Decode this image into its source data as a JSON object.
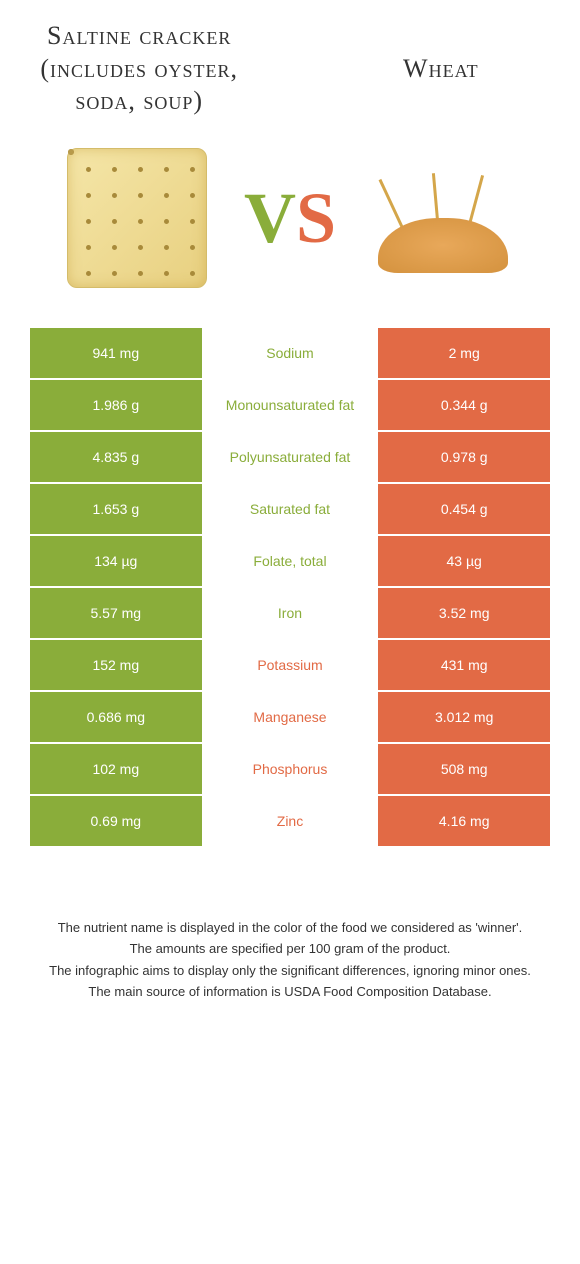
{
  "colors": {
    "left": "#8aad3a",
    "right": "#e26a45",
    "text": "#333333",
    "white": "#ffffff"
  },
  "header": {
    "left_title": "Saltine cracker (includes oyster, soda, soup)",
    "right_title": "Wheat"
  },
  "vs": {
    "v": "V",
    "s": "S"
  },
  "rows": [
    {
      "left": "941 mg",
      "label": "Sodium",
      "right": "2 mg",
      "winner": "left"
    },
    {
      "left": "1.986 g",
      "label": "Monounsaturated fat",
      "right": "0.344 g",
      "winner": "left"
    },
    {
      "left": "4.835 g",
      "label": "Polyunsaturated fat",
      "right": "0.978 g",
      "winner": "left"
    },
    {
      "left": "1.653 g",
      "label": "Saturated fat",
      "right": "0.454 g",
      "winner": "left"
    },
    {
      "left": "134 µg",
      "label": "Folate, total",
      "right": "43 µg",
      "winner": "left"
    },
    {
      "left": "5.57 mg",
      "label": "Iron",
      "right": "3.52 mg",
      "winner": "left"
    },
    {
      "left": "152 mg",
      "label": "Potassium",
      "right": "431 mg",
      "winner": "right"
    },
    {
      "left": "0.686 mg",
      "label": "Manganese",
      "right": "3.012 mg",
      "winner": "right"
    },
    {
      "left": "102 mg",
      "label": "Phosphorus",
      "right": "508 mg",
      "winner": "right"
    },
    {
      "left": "0.69 mg",
      "label": "Zinc",
      "right": "4.16 mg",
      "winner": "right"
    }
  ],
  "footer": {
    "l1": "The nutrient name is displayed in the color of the food we considered as 'winner'.",
    "l2": "The amounts are specified per 100 gram of the product.",
    "l3": "The infographic aims to display only the significant differences, ignoring minor ones.",
    "l4": "The main source of information is USDA Food Composition Database."
  }
}
